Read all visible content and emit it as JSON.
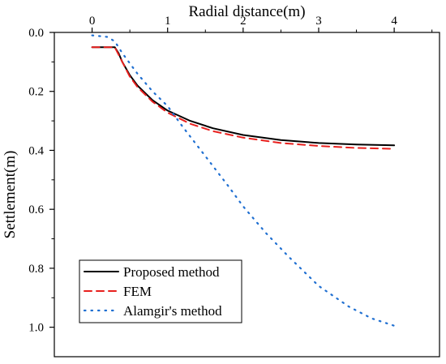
{
  "chart_data": {
    "type": "line",
    "xlabel": "Radial distance(m)",
    "ylabel": "Settlement(m)",
    "x_axis_position": "top",
    "y_inverted": true,
    "xlim": [
      -0.5,
      4.6
    ],
    "ylim": [
      0.0,
      1.1
    ],
    "x_ticks": [
      0,
      1,
      2,
      3,
      4
    ],
    "x_tick_labels": [
      "0",
      "1",
      "2",
      "3",
      "4"
    ],
    "y_ticks": [
      0.0,
      0.2,
      0.4,
      0.6,
      0.8,
      1.0
    ],
    "y_tick_labels": [
      "0.0",
      "0.2",
      "0.4",
      "0.6",
      "0.8",
      "1.0"
    ],
    "grid": false,
    "legend_position": "bottom-left",
    "series": [
      {
        "name": "Proposed method",
        "color": "#000000",
        "line_style": "solid",
        "x": [
          0.0,
          0.3,
          0.35,
          0.4,
          0.5,
          0.6,
          0.8,
          1.0,
          1.3,
          1.6,
          2.0,
          2.5,
          3.0,
          3.5,
          4.0
        ],
        "y": [
          0.05,
          0.05,
          0.07,
          0.1,
          0.145,
          0.18,
          0.23,
          0.265,
          0.3,
          0.325,
          0.348,
          0.365,
          0.375,
          0.38,
          0.383
        ]
      },
      {
        "name": "FEM",
        "color": "#e8201e",
        "line_style": "dashed",
        "x": [
          0.0,
          0.3,
          0.35,
          0.4,
          0.5,
          0.6,
          0.8,
          1.0,
          1.3,
          1.6,
          2.0,
          2.5,
          3.0,
          3.5,
          4.0
        ],
        "y": [
          0.05,
          0.05,
          0.075,
          0.1,
          0.15,
          0.185,
          0.235,
          0.272,
          0.31,
          0.335,
          0.357,
          0.375,
          0.385,
          0.392,
          0.395
        ]
      },
      {
        "name": "Alamgir's method",
        "color": "#1f6fd1",
        "line_style": "dotted",
        "x": [
          0.0,
          0.2,
          0.3,
          0.4,
          0.6,
          0.8,
          1.0,
          1.2,
          1.5,
          1.8,
          2.0,
          2.3,
          2.6,
          3.0,
          3.4,
          3.7,
          4.0
        ],
        "y": [
          0.01,
          0.015,
          0.03,
          0.07,
          0.14,
          0.2,
          0.25,
          0.32,
          0.42,
          0.52,
          0.59,
          0.68,
          0.76,
          0.86,
          0.93,
          0.97,
          0.995
        ]
      }
    ]
  }
}
